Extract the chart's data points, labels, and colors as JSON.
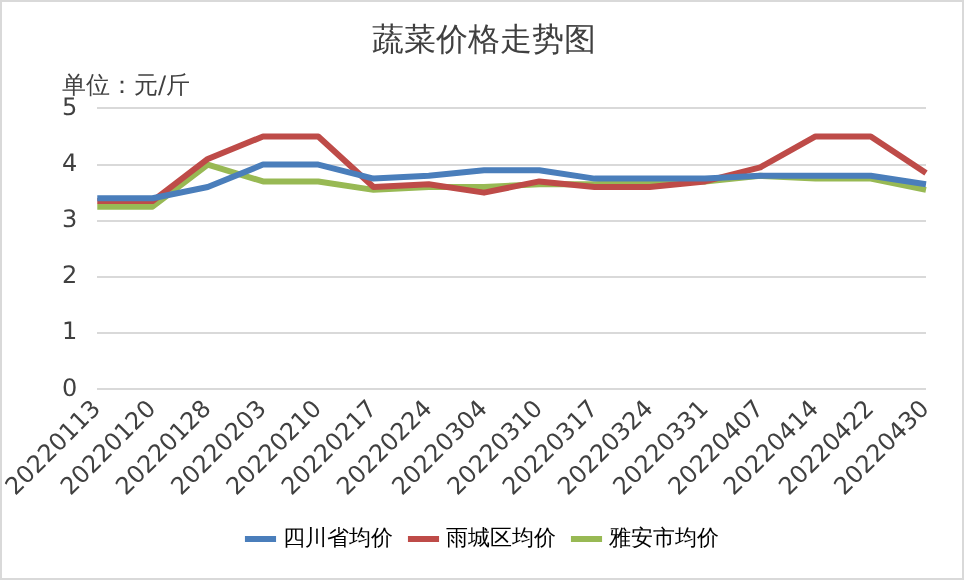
{
  "chart_data": {
    "type": "line",
    "title": "蔬菜价格走势图",
    "ylabel": "单位：元/斤",
    "categories": [
      "20220113",
      "20220120",
      "20220128",
      "20220203",
      "20220210",
      "20220217",
      "20220224",
      "20220304",
      "20220310",
      "20220317",
      "20220324",
      "20220331",
      "20220407",
      "20220414",
      "20220422",
      "20220430"
    ],
    "series": [
      {
        "name": "四川省均价",
        "color": "#4a7ebb",
        "values": [
          3.4,
          3.4,
          3.6,
          4.0,
          4.0,
          3.75,
          3.8,
          3.9,
          3.9,
          3.75,
          3.75,
          3.75,
          3.8,
          3.8,
          3.8,
          3.65
        ]
      },
      {
        "name": "雨城区均价",
        "color": "#be4b48",
        "values": [
          3.35,
          3.35,
          4.1,
          4.5,
          4.5,
          3.6,
          3.65,
          3.5,
          3.7,
          3.6,
          3.6,
          3.7,
          3.95,
          4.5,
          4.5,
          3.85
        ]
      },
      {
        "name": "雅安市均价",
        "color": "#98b954",
        "values": [
          3.25,
          3.25,
          4.0,
          3.7,
          3.7,
          3.55,
          3.6,
          3.6,
          3.65,
          3.65,
          3.7,
          3.7,
          3.8,
          3.75,
          3.75,
          3.55
        ]
      }
    ],
    "ylim": [
      0,
      5
    ],
    "yticks": [
      0,
      1,
      2,
      3,
      4,
      5
    ],
    "grid": "y",
    "legend": "bottom",
    "marker": "none",
    "line_style": "solid"
  }
}
